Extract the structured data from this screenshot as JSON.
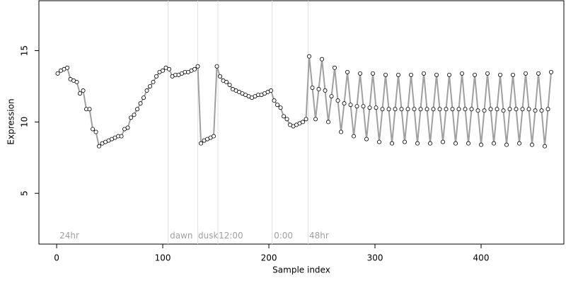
{
  "chart_data": {
    "type": "line",
    "xlabel": "Sample index",
    "ylabel": "Expression",
    "xlim": [
      -16.7,
      478
    ],
    "ylim": [
      1.44,
      18.5
    ],
    "xticks": [
      0,
      100,
      200,
      300,
      400
    ],
    "yticks": [
      5,
      10,
      15
    ],
    "color": "#a0a0a0",
    "marker_fill": "#ffffff",
    "vlines": [
      105,
      133,
      152,
      203,
      237
    ],
    "annotations": [
      {
        "x": 2.7,
        "y": 2.0,
        "label": "24hr"
      },
      {
        "x": 106.7,
        "y": 2.0,
        "label": "dawn"
      },
      {
        "x": 133.3,
        "y": 2.0,
        "label": "dusk"
      },
      {
        "x": 152.7,
        "y": 2.0,
        "label": "12:00"
      },
      {
        "x": 204.7,
        "y": 2.0,
        "label": "0:00"
      },
      {
        "x": 238,
        "y": 2.0,
        "label": "48hr"
      }
    ],
    "x": [
      1,
      4,
      7,
      10,
      13,
      16,
      19,
      22,
      25,
      28,
      31,
      34,
      37,
      40,
      43,
      46,
      49,
      52,
      55,
      58,
      61,
      64,
      67,
      70,
      73,
      76,
      79,
      82,
      85,
      88,
      91,
      94,
      97,
      100,
      103,
      106,
      109,
      112,
      115,
      118,
      121,
      124,
      127,
      130,
      133,
      136,
      139,
      142,
      145,
      148,
      151,
      154,
      157,
      160,
      163,
      166,
      169,
      172,
      175,
      178,
      181,
      184,
      187,
      190,
      193,
      196,
      199,
      202,
      205,
      208,
      211,
      214,
      217,
      220,
      223,
      226,
      229,
      232,
      235,
      238,
      241,
      244,
      247,
      250,
      253,
      256,
      259,
      262,
      265,
      268,
      271,
      274,
      277,
      280,
      283,
      286,
      289,
      292,
      295,
      298,
      301,
      304,
      307,
      310,
      313,
      316,
      319,
      322,
      325,
      328,
      331,
      334,
      337,
      340,
      343,
      346,
      349,
      352,
      355,
      358,
      361,
      364,
      367,
      370,
      373,
      376,
      379,
      382,
      385,
      388,
      391,
      394,
      397,
      400,
      403,
      406,
      409,
      412,
      415,
      418,
      421,
      424,
      427,
      430,
      433,
      436,
      439,
      442,
      445,
      448,
      451,
      454,
      457,
      460,
      463,
      466
    ],
    "values": [
      13.4,
      13.6,
      13.7,
      13.8,
      13.0,
      12.9,
      12.8,
      12.0,
      12.2,
      10.9,
      10.9,
      9.5,
      9.3,
      8.3,
      8.5,
      8.6,
      8.7,
      8.8,
      8.9,
      9.0,
      9.0,
      9.5,
      9.6,
      10.3,
      10.5,
      10.9,
      11.3,
      11.7,
      12.2,
      12.5,
      12.8,
      13.2,
      13.5,
      13.6,
      13.8,
      13.7,
      13.2,
      13.3,
      13.3,
      13.4,
      13.5,
      13.5,
      13.6,
      13.7,
      13.9,
      8.5,
      8.7,
      8.8,
      8.9,
      9.0,
      13.9,
      13.2,
      12.9,
      12.8,
      12.6,
      12.3,
      12.2,
      12.1,
      12.0,
      11.9,
      11.8,
      11.7,
      11.8,
      11.9,
      11.9,
      12.0,
      12.1,
      12.2,
      11.5,
      11.2,
      11.0,
      10.4,
      10.2,
      9.8,
      9.7,
      9.8,
      9.9,
      10.0,
      10.2,
      14.6,
      12.4,
      10.2,
      12.3,
      14.4,
      12.2,
      10.0,
      11.8,
      13.8,
      11.5,
      9.3,
      11.3,
      13.5,
      11.2,
      9.0,
      11.1,
      13.4,
      11.1,
      8.8,
      11.0,
      13.4,
      11.0,
      8.6,
      10.9,
      13.3,
      10.9,
      8.5,
      10.9,
      13.3,
      10.9,
      8.6,
      10.9,
      13.3,
      10.9,
      8.5,
      10.9,
      13.4,
      10.9,
      8.5,
      10.9,
      13.3,
      10.9,
      8.6,
      10.9,
      13.3,
      10.9,
      8.5,
      10.9,
      13.4,
      10.9,
      8.5,
      10.9,
      13.3,
      10.8,
      8.4,
      10.8,
      13.4,
      10.9,
      8.5,
      10.9,
      13.3,
      10.8,
      8.4,
      10.9,
      13.3,
      10.9,
      8.5,
      10.9,
      13.4,
      10.9,
      8.4,
      10.8,
      13.4,
      10.8,
      8.3,
      10.9,
      13.5
    ]
  }
}
